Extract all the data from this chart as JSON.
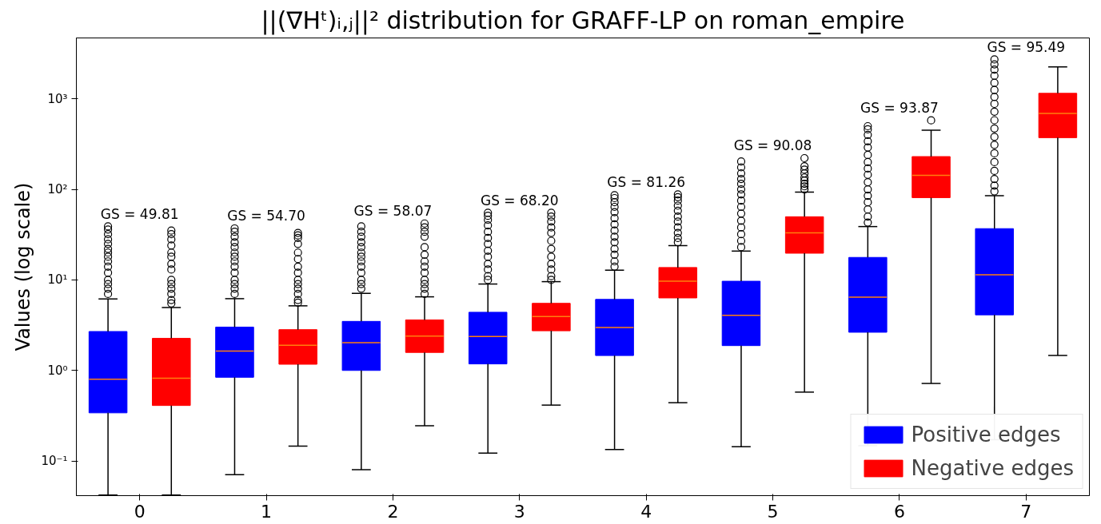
{
  "chart_data": {
    "type": "box",
    "title": "||(∇Hᵗ)ᵢ,ⱼ||² distribution for GRAFF-LP on roman_empire",
    "ylabel": "Values (log scale)",
    "log": true,
    "grid": false,
    "legend": "bottom right",
    "categories": [
      "0",
      "1",
      "2",
      "3",
      "4",
      "5",
      "6",
      "7"
    ],
    "ylim": [
      0.0414,
      4700
    ],
    "yticks": [
      {
        "value": 0.1,
        "label": "10⁻¹"
      },
      {
        "value": 1,
        "label": "10⁰"
      },
      {
        "value": 10,
        "label": "10¹"
      },
      {
        "value": 100,
        "label": "10²"
      },
      {
        "value": 1000,
        "label": "10³"
      }
    ],
    "series": [
      {
        "name": "Positive edges",
        "color": "#0000ff",
        "boxes": [
          {
            "low": 0.042,
            "q1": 0.34,
            "median": 0.8,
            "q3": 2.69,
            "high": 6.15,
            "outliers": [
              7,
              8,
              9,
              10,
              12,
              14,
              16,
              18,
              20,
              22,
              25,
              28,
              32,
              36,
              39
            ]
          },
          {
            "low": 0.0705,
            "q1": 0.84,
            "median": 1.64,
            "q3": 3.01,
            "high": 6.2,
            "outliers": [
              7,
              8,
              9,
              10,
              12,
              14,
              16,
              18,
              20,
              23,
              26,
              30,
              34,
              37
            ]
          },
          {
            "low": 0.08,
            "q1": 1.0,
            "median": 2.03,
            "q3": 3.48,
            "high": 7.1,
            "outliers": [
              8,
              9,
              10,
              12,
              14,
              16,
              18,
              20,
              23,
              26,
              30,
              34,
              39
            ]
          },
          {
            "low": 0.122,
            "q1": 1.18,
            "median": 2.37,
            "q3": 4.39,
            "high": 9.0,
            "outliers": [
              10,
              11,
              13,
              15,
              18,
              21,
              25,
              29,
              34,
              40,
              46,
              51,
              55
            ]
          },
          {
            "low": 0.134,
            "q1": 1.46,
            "median": 2.98,
            "q3": 6.09,
            "high": 12.8,
            "outliers": [
              14,
              16,
              19,
              22,
              26,
              30,
              35,
              41,
              48,
              56,
              64,
              72,
              80,
              86
            ]
          },
          {
            "low": 0.144,
            "q1": 1.88,
            "median": 4.07,
            "q3": 9.66,
            "high": 20.8,
            "outliers": [
              23,
              27,
              32,
              38,
              45,
              54,
              64,
              75,
              88,
              100,
              115,
              130,
              150,
              175,
              203
            ]
          },
          {
            "low": 0.147,
            "q1": 2.64,
            "median": 6.44,
            "q3": 17.7,
            "high": 38.8,
            "outliers": [
              43,
              50,
              60,
              72,
              85,
              100,
              120,
              145,
              170,
              200,
              240,
              290,
              340,
              400,
              460,
              498
            ]
          },
          {
            "low": 0.172,
            "q1": 4.11,
            "median": 11.4,
            "q3": 36.8,
            "high": 85,
            "outliers": [
              95,
              110,
              130,
              160,
              200,
              250,
              310,
              380,
              470,
              580,
              720,
              880,
              1050,
              1250,
              1500,
              1800,
              2100,
              2400,
              2720
            ]
          }
        ]
      },
      {
        "name": "Negative edges",
        "color": "#ff0000",
        "boxes": [
          {
            "low": 0.042,
            "q1": 0.41,
            "median": 0.82,
            "q3": 2.26,
            "high": 4.94,
            "outliers": [
              5.5,
              6,
              7,
              8,
              9,
              10,
              13,
              15,
              18,
              20,
              24,
              28,
              32,
              35
            ]
          },
          {
            "low": 0.146,
            "q1": 1.17,
            "median": 1.9,
            "q3": 2.82,
            "high": 5.17,
            "outliers": [
              5.6,
              6,
              7,
              8,
              9,
              10,
              12,
              14,
              17,
              20,
              25,
              29,
              31,
              33
            ]
          },
          {
            "low": 0.245,
            "q1": 1.58,
            "median": 2.39,
            "q3": 3.61,
            "high": 6.5,
            "outliers": [
              7,
              8,
              9,
              10,
              12,
              14,
              16,
              19,
              23,
              30,
              34,
              38,
              42
            ]
          },
          {
            "low": 0.414,
            "q1": 2.74,
            "median": 3.93,
            "q3": 5.51,
            "high": 9.56,
            "outliers": [
              10,
              11,
              13,
              15,
              18,
              22,
              27,
              33,
              38,
              44,
              50,
              55
            ]
          },
          {
            "low": 0.44,
            "q1": 6.32,
            "median": 9.66,
            "q3": 13.7,
            "high": 23.9,
            "outliers": [
              26,
              29,
              33,
              38,
              44,
              50,
              58,
              66,
              75,
              82,
              88
            ]
          },
          {
            "low": 0.576,
            "q1": 19.7,
            "median": 33,
            "q3": 49.8,
            "high": 93,
            "outliers": [
              100,
              108,
              115,
              125,
              135,
              150,
              165,
              180,
              221
            ]
          },
          {
            "low": 0.718,
            "q1": 81,
            "median": 143,
            "q3": 230,
            "high": 451,
            "outliers": [
              578
            ]
          },
          {
            "low": 1.46,
            "q1": 372,
            "median": 689,
            "q3": 1150,
            "high": 2250
          }
        ]
      }
    ],
    "annotations": [
      "GS = 49.81",
      "GS = 54.70",
      "GS = 58.07",
      "GS = 68.20",
      "GS = 81.26",
      "GS = 90.08",
      "GS = 93.87",
      "GS = 95.49"
    ]
  }
}
